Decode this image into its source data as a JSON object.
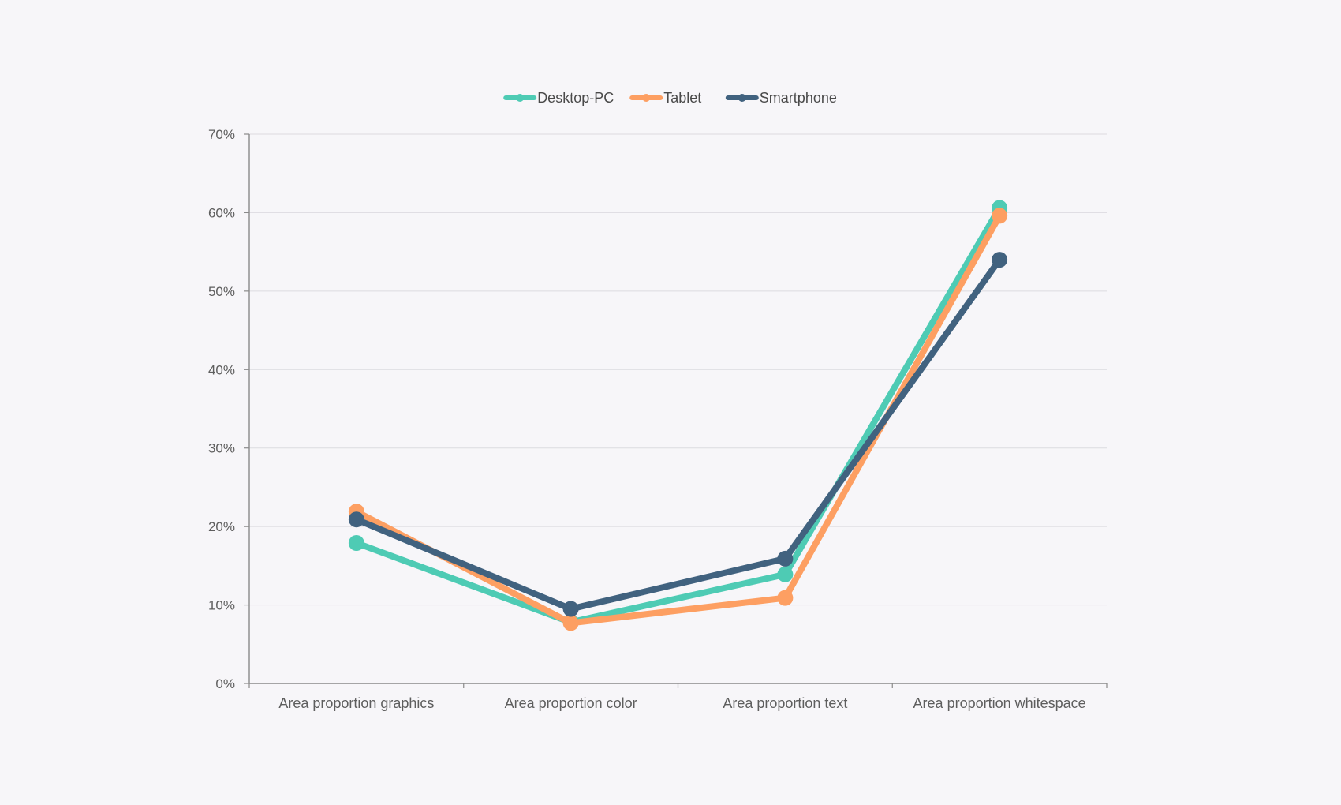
{
  "chart_data": {
    "type": "line",
    "title": "",
    "xlabel": "",
    "ylabel": "",
    "categories": [
      "Area proportion graphics",
      "Area proportion color",
      "Area proportion text",
      "Area proportion whitespace"
    ],
    "series": [
      {
        "name": "Desktop-PC",
        "color": "#4ecbb4",
        "values": [
          17.9,
          7.8,
          13.9,
          60.6
        ]
      },
      {
        "name": "Tablet",
        "color": "#fd9f62",
        "values": [
          21.9,
          7.7,
          10.9,
          59.6
        ]
      },
      {
        "name": "Smartphone",
        "color": "#41627f",
        "values": [
          20.9,
          9.5,
          15.9,
          54.0
        ]
      }
    ],
    "ylim": [
      0,
      70
    ],
    "yticks": [
      0,
      10,
      20,
      30,
      40,
      50,
      60,
      70
    ],
    "ytick_labels": [
      "0%",
      "10%",
      "20%",
      "30%",
      "40%",
      "50%",
      "60%",
      "70%"
    ],
    "grid": true,
    "legend_position": "top-center"
  }
}
